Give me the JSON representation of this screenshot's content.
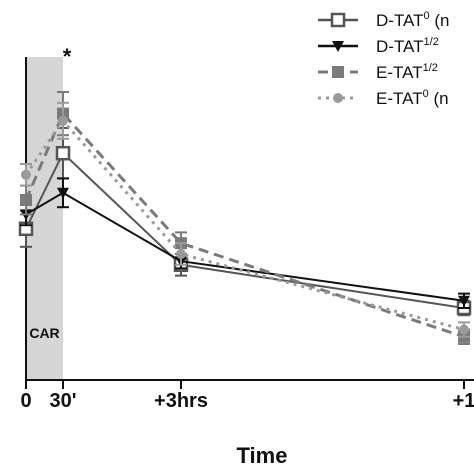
{
  "chart_data": {
    "type": "line",
    "xlabel": "Time",
    "ylabel": "",
    "title": "",
    "x_ticks": [
      "0",
      "30'",
      "+3hrs",
      "+1"
    ],
    "x_tick_pos": [
      0,
      30,
      180,
      600
    ],
    "xlim": [
      -5,
      640
    ],
    "ylim": [
      0,
      100
    ],
    "shaded_region": {
      "x": [
        0,
        30
      ],
      "label": "CAR"
    },
    "significance_marks": [
      {
        "x": 30,
        "label": "*"
      }
    ],
    "legend_position": "top-right",
    "series": [
      {
        "name": "D-TAT",
        "name_sup": "0",
        "name_suffix": "(n",
        "color": "#555555",
        "dash": "solid",
        "marker": "open-square",
        "x": [
          0,
          30,
          180,
          600
        ],
        "y": [
          42,
          63,
          32,
          20
        ],
        "err": [
          5,
          7,
          3,
          2
        ]
      },
      {
        "name": "D-TAT",
        "name_sup": "1/2",
        "name_suffix": "",
        "color": "#111111",
        "dash": "solid",
        "marker": "triangle-down",
        "x": [
          0,
          30,
          180,
          600
        ],
        "y": [
          46,
          52,
          33,
          22
        ],
        "err": [
          3,
          4,
          2,
          2
        ]
      },
      {
        "name": "E-TAT",
        "name_sup": "1/2",
        "name_suffix": "",
        "color": "#7a7a7a",
        "dash": "dashed",
        "marker": "filled-square",
        "x": [
          0,
          30,
          180,
          600
        ],
        "y": [
          50,
          74,
          38,
          12
        ],
        "err": [
          4,
          6,
          3,
          2
        ]
      },
      {
        "name": "E-TAT",
        "name_sup": "0",
        "name_suffix": "(n",
        "color": "#9a9a9a",
        "dash": "dotted",
        "marker": "circle",
        "x": [
          0,
          30,
          180,
          600
        ],
        "y": [
          57,
          72,
          35,
          14
        ],
        "err": [
          3,
          5,
          3,
          2
        ]
      }
    ]
  }
}
